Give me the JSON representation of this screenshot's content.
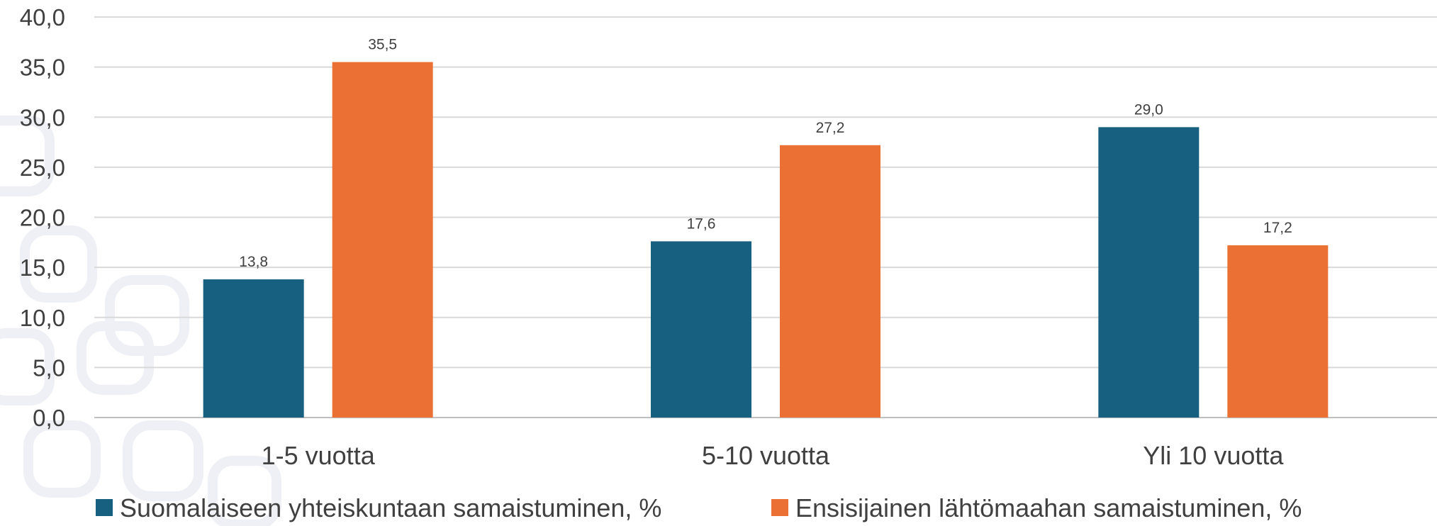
{
  "chart_data": {
    "type": "bar",
    "categories": [
      "1-5 vuotta",
      "5-10 vuotta",
      "Yli 10 vuotta"
    ],
    "series": [
      {
        "name": "Suomalaiseen yhteiskuntaan samaistuminen, %",
        "color": "#17607f",
        "values": [
          13.8,
          17.6,
          29.0
        ],
        "labels": [
          "13,8",
          "17,6",
          "29,0"
        ]
      },
      {
        "name": "Ensisijainen lähtömaahan samaistuminen, %",
        "color": "#ea7133",
        "values": [
          35.5,
          27.2,
          17.2
        ],
        "labels": [
          "35,5",
          "27,2",
          "17,2"
        ]
      }
    ],
    "ylim": [
      0,
      40
    ],
    "yticks": [
      0,
      5,
      10,
      15,
      20,
      25,
      30,
      35,
      40
    ],
    "ytick_labels": [
      "0,0",
      "5,0",
      "10,0",
      "15,0",
      "20,0",
      "25,0",
      "30,0",
      "35,0",
      "40,0"
    ],
    "grid": true,
    "legend_position": "bottom",
    "title": "",
    "xlabel": "",
    "ylabel": ""
  }
}
